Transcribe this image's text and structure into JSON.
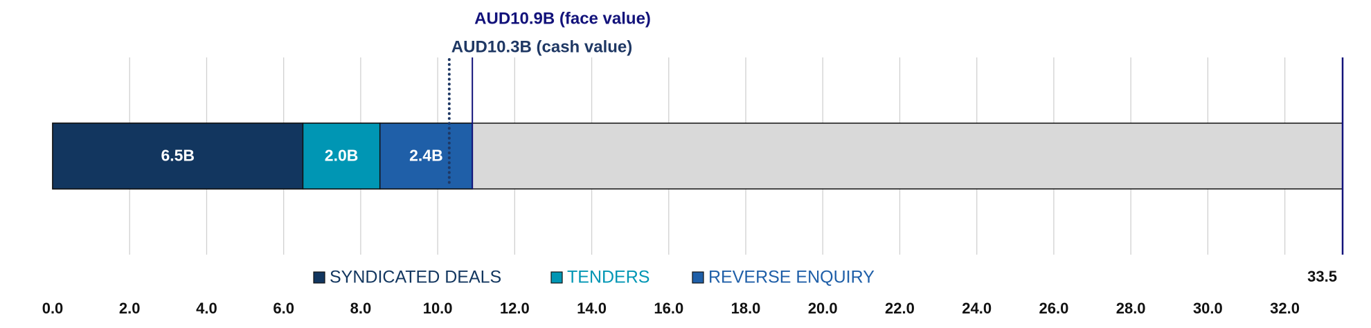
{
  "chart_data": {
    "type": "stacked-bar",
    "series": [
      {
        "name": "SYNDICATED DEALS",
        "color": "#12365f",
        "values": [
          6.5
        ],
        "value_labels": [
          "6.5B"
        ]
      },
      {
        "name": "TENDERS",
        "color": "#0096b4",
        "values": [
          2.0
        ],
        "value_labels": [
          "2.0B"
        ]
      },
      {
        "name": "REVERSE ENQUIRY",
        "color": "#1f5fa8",
        "values": [
          2.4
        ],
        "value_labels": [
          "2.4B"
        ]
      }
    ],
    "target": {
      "value": 33.5,
      "label": "33.5",
      "color": "#d9d9d9"
    },
    "annotations": [
      {
        "value": 10.9,
        "label": "AUD10.9B (face value)",
        "color": "#12127a",
        "style": "solid"
      },
      {
        "value": 10.3,
        "label": "AUD10.3B (cash value)",
        "color": "#1f3864",
        "style": "dotted"
      }
    ],
    "xlim": [
      0,
      33.5
    ],
    "xticks": [
      {
        "value": 0,
        "label": "0.0"
      },
      {
        "value": 2,
        "label": "2.0"
      },
      {
        "value": 4,
        "label": "4.0"
      },
      {
        "value": 6,
        "label": "6.0"
      },
      {
        "value": 8,
        "label": "8.0"
      },
      {
        "value": 10,
        "label": "10.0"
      },
      {
        "value": 12,
        "label": "12.0"
      },
      {
        "value": 14,
        "label": "14.0"
      },
      {
        "value": 16,
        "label": "16.0"
      },
      {
        "value": 18,
        "label": "18.0"
      },
      {
        "value": 20,
        "label": "20.0"
      },
      {
        "value": 22,
        "label": "22.0"
      },
      {
        "value": 24,
        "label": "24.0"
      },
      {
        "value": 26,
        "label": "26.0"
      },
      {
        "value": 28,
        "label": "28.0"
      },
      {
        "value": 30,
        "label": "30.0"
      },
      {
        "value": 32,
        "label": "32.0"
      }
    ],
    "grid": true
  }
}
